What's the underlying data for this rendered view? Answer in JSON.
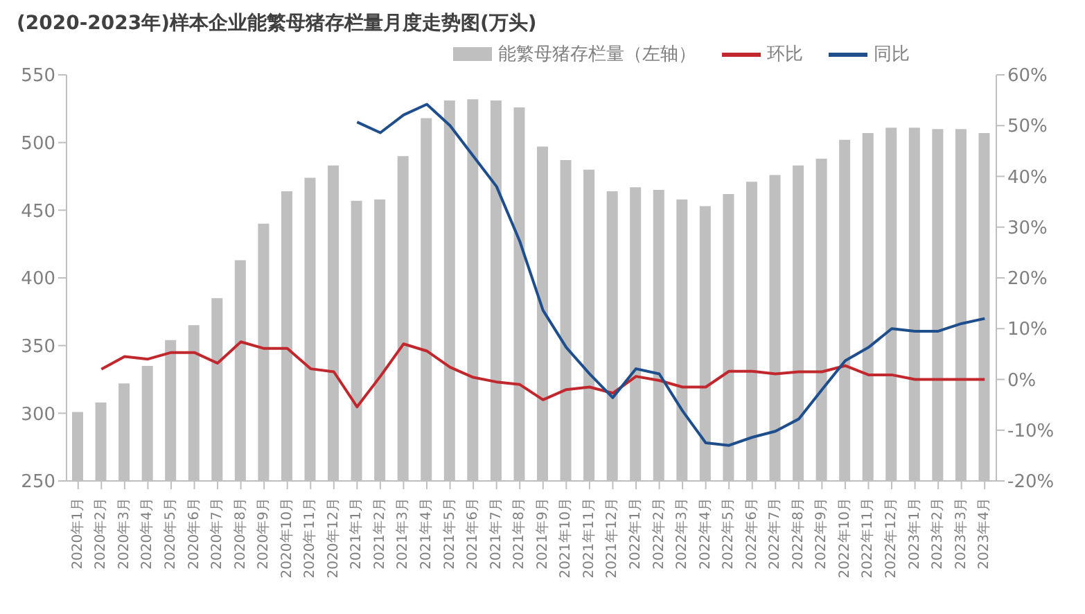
{
  "chart_data": {
    "type": "bar",
    "title": "(2020-2023年)样本企业能繁母猪存栏量月度走势图(万头)",
    "categories": [
      "2020年1月",
      "2020年2月",
      "2020年3月",
      "2020年4月",
      "2020年5月",
      "2020年6月",
      "2020年7月",
      "2020年8月",
      "2020年9月",
      "2020年10月",
      "2020年11月",
      "2020年12月",
      "2021年1月",
      "2021年2月",
      "2021年3月",
      "2021年4月",
      "2021年5月",
      "2021年6月",
      "2021年7月",
      "2021年8月",
      "2021年9月",
      "2021年10月",
      "2021年11月",
      "2021年12月",
      "2022年1月",
      "2022年2月",
      "2022年3月",
      "2022年4月",
      "2022年5月",
      "2022年6月",
      "2022年7月",
      "2022年8月",
      "2022年9月",
      "2022年10月",
      "2022年11月",
      "2022年12月",
      "2023年1月",
      "2023年2月",
      "2023年3月",
      "2023年4月"
    ],
    "series": [
      {
        "name": "能繁母猪存栏量（左轴）",
        "color": "#bfbfbf",
        "values": [
          301,
          308,
          322,
          335,
          354,
          365,
          385,
          413,
          440,
          464,
          474,
          483,
          457,
          458,
          490,
          518,
          531,
          532,
          531,
          526,
          497,
          487,
          480,
          464,
          467,
          465,
          458,
          453,
          462,
          471,
          476,
          483,
          488,
          502,
          507,
          511,
          511,
          510,
          510,
          507
        ]
      },
      {
        "name": "环比",
        "type": "line",
        "axis": "y2",
        "color": "#c0282d",
        "values": [
          null,
          2,
          4.5,
          4,
          5.3,
          5.3,
          3.2,
          7.4,
          6.1,
          6.1,
          2.1,
          1.5,
          -5.4,
          0.6,
          7,
          5.6,
          2.4,
          0.4,
          -0.5,
          -1,
          -4,
          -2,
          -1.5,
          -2.7,
          0.6,
          -0.2,
          -1.5,
          -1.5,
          1.6,
          1.6,
          1.1,
          1.5,
          1.5,
          2.7,
          0.9,
          0.9,
          0,
          0,
          0,
          0
        ]
      },
      {
        "name": "同比",
        "type": "line",
        "axis": "y2",
        "color": "#1f4e8c",
        "values": [
          null,
          null,
          null,
          null,
          null,
          null,
          null,
          null,
          null,
          null,
          null,
          null,
          50.7,
          48.6,
          52.1,
          54.2,
          50,
          44,
          38,
          27.2,
          13.6,
          6.3,
          1.1,
          -3.6,
          2.1,
          1.1,
          -6.2,
          -12.5,
          -13,
          -11.4,
          -10.2,
          -7.8,
          -2,
          3.7,
          6.3,
          10,
          9.5,
          9.5,
          11,
          12
        ]
      }
    ],
    "ylim": [
      250,
      550
    ],
    "yticks": [
      250,
      300,
      350,
      400,
      450,
      500,
      550
    ],
    "y2lim": [
      -20,
      60
    ],
    "y2ticks": [
      {
        "value": -20,
        "label": "-20%"
      },
      {
        "value": -10,
        "label": "-10%"
      },
      {
        "value": 0,
        "label": "0%"
      },
      {
        "value": 10,
        "label": "10%"
      },
      {
        "value": 20,
        "label": "20%"
      },
      {
        "value": 30,
        "label": "30%"
      },
      {
        "value": 40,
        "label": "40%"
      },
      {
        "value": 50,
        "label": "50%"
      },
      {
        "value": 60,
        "label": "60%"
      }
    ],
    "grid": false,
    "legend": "top",
    "marker": "none",
    "line_style": "solid"
  }
}
